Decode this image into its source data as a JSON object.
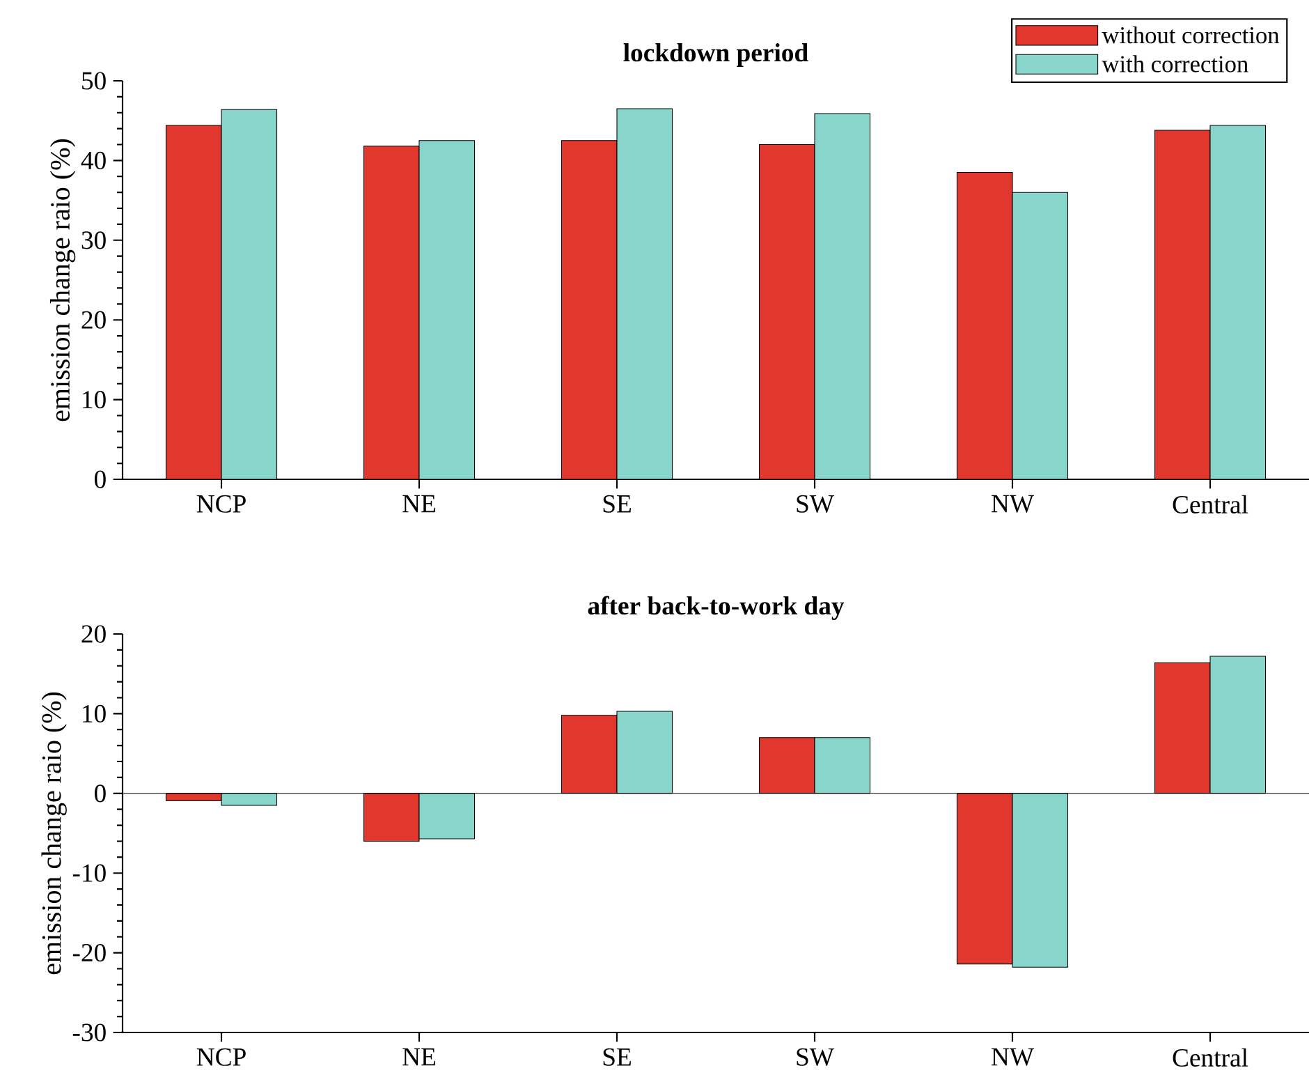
{
  "chart_data": [
    {
      "type": "bar",
      "title": "lockdown period",
      "ylabel": "emission change raio (%)",
      "categories": [
        "NCP",
        "NE",
        "SE",
        "SW",
        "NW",
        "Central"
      ],
      "series": [
        {
          "name": "without correction",
          "color": "#e1372d",
          "values": [
            44.4,
            41.8,
            42.5,
            42.0,
            38.5,
            43.8
          ]
        },
        {
          "name": "with correction",
          "color": "#88d6cb",
          "values": [
            46.4,
            42.5,
            46.5,
            45.9,
            36.0,
            44.4
          ]
        }
      ],
      "ylim": [
        0,
        50
      ],
      "yticks": [
        0,
        10,
        20,
        30,
        40,
        50
      ],
      "grid": false,
      "legend": "top right"
    },
    {
      "type": "bar",
      "title": "after back-to-work day",
      "ylabel": "emission change raio (%)",
      "categories": [
        "NCP",
        "NE",
        "SE",
        "SW",
        "NW",
        "Central"
      ],
      "series": [
        {
          "color": "#e1372d",
          "values": [
            -0.9,
            -6.0,
            9.8,
            7.0,
            -21.4,
            16.4
          ]
        },
        {
          "color": "#88d6cb",
          "values": [
            -1.5,
            -5.7,
            10.3,
            7.0,
            -21.8,
            17.2
          ]
        }
      ],
      "ylim": [
        -30,
        20
      ],
      "yticks": [
        -30,
        -20,
        -10,
        0,
        10,
        20
      ],
      "grid": false,
      "legend": false,
      "ref_lines": [
        {
          "axis": "y",
          "value": 0
        }
      ]
    }
  ]
}
